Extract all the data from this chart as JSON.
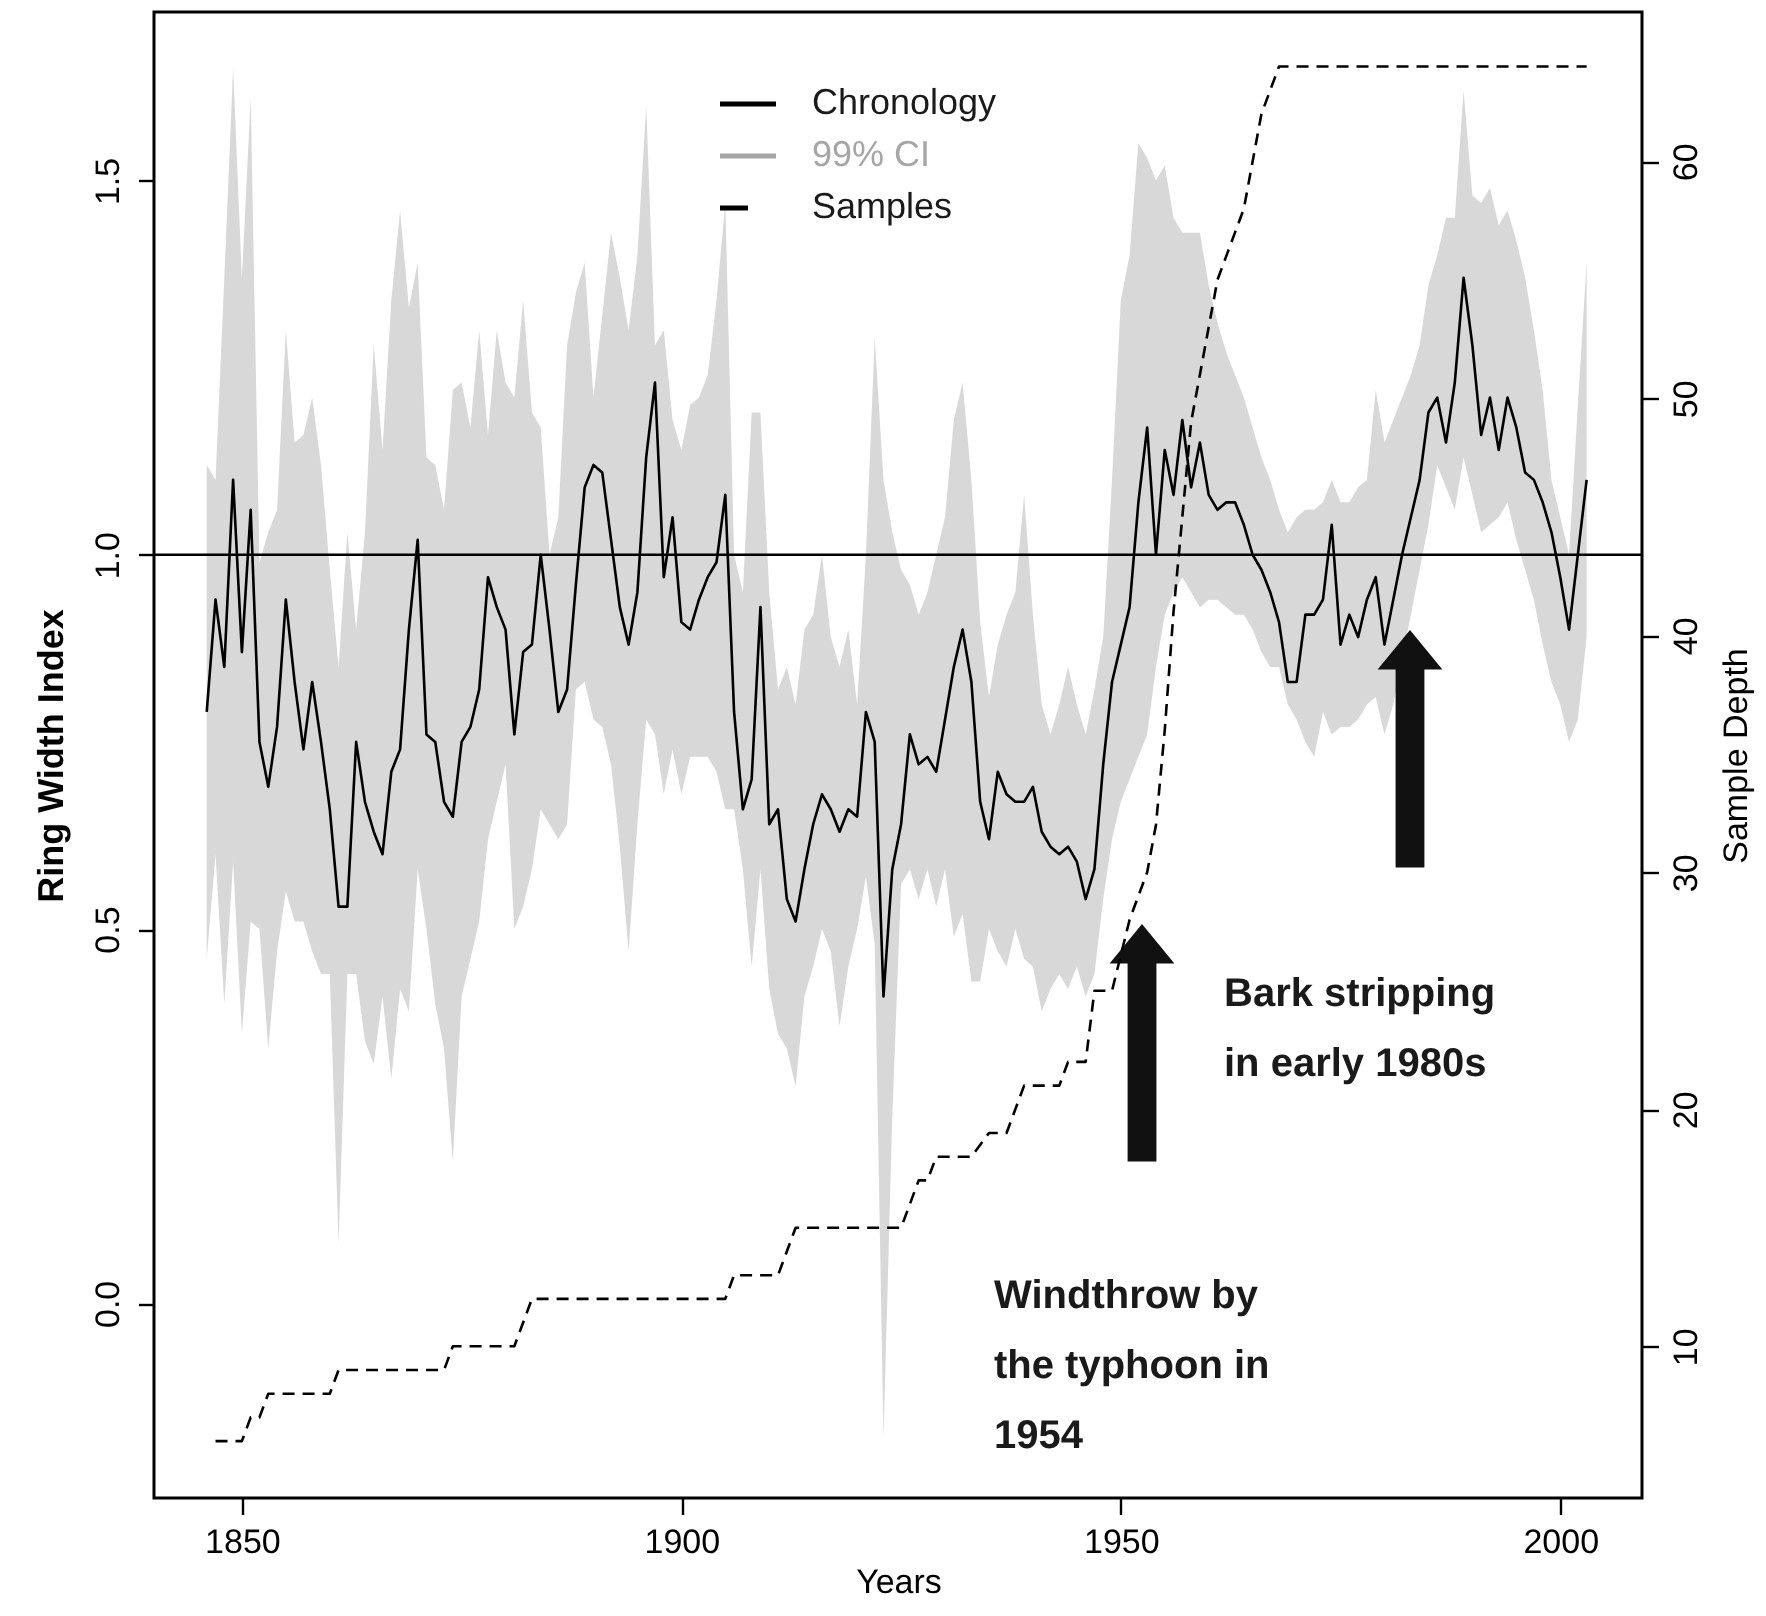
{
  "chart_data": {
    "type": "line",
    "xlabel": "Years",
    "ylabel": "Ring Width Index",
    "y2label": "Sample Depth",
    "xlim": [
      1840,
      2009.3
    ],
    "xticks": [
      1850,
      1900,
      1950,
      2000
    ],
    "ylim": [
      -0.26,
      1.725
    ],
    "yticks": [
      {
        "value": 0,
        "label": "0.0"
      },
      {
        "value": 0.5,
        "label": "0.5"
      },
      {
        "value": 1,
        "label": "1.0"
      },
      {
        "value": 1.5,
        "label": "1.5"
      }
    ],
    "y2lim": [
      3.6,
      66.3
    ],
    "y2ticks": [
      10,
      20,
      30,
      40,
      50,
      60
    ],
    "grid": false,
    "legend": "top",
    "ref_lines": [
      {
        "axis": "y",
        "value": 1,
        "color": "#000000"
      }
    ],
    "annotations": [
      "Windthrow  by\nthe typhoon in\n1954",
      "Bark stripping\nin early 1980s",
      "99% CI"
    ],
    "series": [
      {
        "name": "Chronology",
        "color": "#000000",
        "line_style": "solid",
        "x": [
          1846,
          1847,
          1848,
          1849,
          1850,
          1851,
          1852,
          1853,
          1854,
          1855,
          1856,
          1857,
          1858,
          1859,
          1860,
          1861,
          1862,
          1863,
          1864,
          1865,
          1866,
          1867,
          1868,
          1869,
          1870,
          1871,
          1872,
          1873,
          1874,
          1875,
          1876,
          1877,
          1878,
          1879,
          1880,
          1881,
          1882,
          1883,
          1884,
          1885,
          1886,
          1887,
          1888,
          1889,
          1890,
          1891,
          1892,
          1893,
          1894,
          1895,
          1896,
          1897,
          1898,
          1899,
          1900,
          1901,
          1902,
          1903,
          1904,
          1905,
          1906,
          1907,
          1908,
          1909,
          1910,
          1911,
          1912,
          1913,
          1914,
          1915,
          1916,
          1917,
          1918,
          1919,
          1920,
          1921,
          1922,
          1923,
          1924,
          1925,
          1926,
          1927,
          1928,
          1929,
          1930,
          1931,
          1932,
          1933,
          1934,
          1935,
          1936,
          1937,
          1938,
          1939,
          1940,
          1941,
          1942,
          1943,
          1944,
          1945,
          1946,
          1947,
          1948,
          1949,
          1950,
          1951,
          1952,
          1953,
          1954,
          1955,
          1956,
          1957,
          1958,
          1959,
          1960,
          1961,
          1962,
          1963,
          1964,
          1965,
          1966,
          1967,
          1968,
          1969,
          1970,
          1971,
          1972,
          1973,
          1974,
          1975,
          1976,
          1977,
          1978,
          1979,
          1980,
          1981,
          1982,
          1983,
          1984,
          1985,
          1986,
          1987,
          1988,
          1989,
          1990,
          1991,
          1992,
          1993,
          1994,
          1995,
          1996,
          1997,
          1998,
          1999,
          2000,
          2001,
          2002,
          2003
        ],
        "upper": [
          1.12,
          1.1,
          1.37,
          1.65,
          1.37,
          1.61,
          0.99,
          1.03,
          1.06,
          1.3,
          1.15,
          1.16,
          1.21,
          1.12,
          0.98,
          0.85,
          1.03,
          0.9,
          1.03,
          1.28,
          1.14,
          1.34,
          1.46,
          1.33,
          1.39,
          1.13,
          1.12,
          1.06,
          1.22,
          1.23,
          1.17,
          1.3,
          1.16,
          1.3,
          1.23,
          1.21,
          1.34,
          1.19,
          1.17,
          1.0,
          1.05,
          1.28,
          1.35,
          1.39,
          1.21,
          1.32,
          1.43,
          1.37,
          1.3,
          1.4,
          1.6,
          1.28,
          1.3,
          1.18,
          1.14,
          1.2,
          1.21,
          1.24,
          1.34,
          1.47,
          1.0,
          0.95,
          1.19,
          1.19,
          0.95,
          0.82,
          0.85,
          0.8,
          0.9,
          0.92,
          1.0,
          0.89,
          0.85,
          0.9,
          0.8,
          1.0,
          1.29,
          1.1,
          1.03,
          0.98,
          0.96,
          0.92,
          0.95,
          1.0,
          1.05,
          1.18,
          1.23,
          1.1,
          0.91,
          0.81,
          0.88,
          0.92,
          0.95,
          1.08,
          0.92,
          0.8,
          0.76,
          0.8,
          0.85,
          0.8,
          0.76,
          0.82,
          0.89,
          1.1,
          1.34,
          1.4,
          1.55,
          1.53,
          1.5,
          1.52,
          1.45,
          1.43,
          1.43,
          1.43,
          1.36,
          1.31,
          1.27,
          1.24,
          1.21,
          1.17,
          1.13,
          1.1,
          1.06,
          1.03,
          1.05,
          1.06,
          1.06,
          1.07,
          1.1,
          1.07,
          1.07,
          1.09,
          1.1,
          1.22,
          1.15,
          1.18,
          null,
          1.24,
          1.28,
          1.36,
          1.4,
          1.45,
          1.45,
          1.62,
          1.48,
          1.47,
          1.49,
          1.44,
          1.46,
          1.42,
          1.37,
          1.3,
          1.22,
          1.1,
          1.05,
          1.0,
          1.2,
          1.39
        ],
        "values": [
          0.79,
          0.94,
          0.85,
          1.1,
          0.87,
          1.06,
          0.75,
          0.69,
          0.77,
          0.94,
          0.83,
          0.74,
          0.83,
          0.75,
          0.66,
          0.53,
          0.53,
          0.75,
          0.67,
          0.63,
          0.6,
          0.71,
          0.74,
          0.9,
          1.02,
          0.76,
          0.75,
          0.67,
          0.65,
          0.75,
          0.77,
          0.82,
          0.97,
          0.93,
          0.9,
          0.76,
          0.87,
          0.88,
          1.0,
          0.9,
          0.79,
          0.82,
          0.96,
          1.09,
          1.12,
          1.11,
          1.02,
          0.93,
          0.88,
          0.95,
          1.13,
          1.23,
          0.97,
          1.05,
          0.91,
          0.9,
          0.94,
          0.97,
          0.99,
          1.08,
          0.79,
          0.66,
          0.7,
          0.93,
          0.64,
          0.66,
          0.54,
          0.51,
          0.58,
          0.64,
          0.68,
          0.66,
          0.63,
          0.66,
          0.65,
          0.79,
          0.75,
          0.41,
          0.58,
          0.64,
          0.76,
          0.72,
          0.73,
          0.71,
          0.78,
          0.85,
          0.9,
          0.83,
          0.67,
          0.62,
          0.71,
          0.68,
          0.67,
          0.67,
          0.69,
          0.63,
          0.61,
          0.6,
          0.61,
          0.59,
          0.54,
          0.58,
          0.72,
          0.83,
          0.88,
          0.93,
          1.07,
          1.17,
          1.0,
          1.14,
          1.08,
          1.18,
          1.09,
          1.15,
          1.08,
          1.06,
          1.07,
          1.07,
          1.04,
          1.0,
          0.98,
          0.95,
          0.91,
          0.83,
          0.83,
          0.92,
          0.92,
          0.94,
          1.04,
          0.88,
          0.92,
          0.89,
          0.94,
          0.97,
          0.88,
          0.94,
          1.0,
          1.05,
          1.1,
          1.19,
          1.21,
          1.15,
          1.23,
          1.37,
          1.28,
          1.16,
          1.21,
          1.14,
          1.21,
          1.17,
          1.11,
          1.1,
          1.07,
          1.03,
          0.97,
          0.9,
          1.0,
          1.1
        ],
        "lower": [
          0.46,
          0.6,
          0.4,
          0.59,
          0.36,
          0.51,
          0.5,
          0.34,
          0.47,
          0.55,
          0.51,
          0.51,
          0.47,
          0.44,
          0.44,
          0.08,
          0.44,
          0.44,
          0.35,
          0.32,
          0.41,
          0.3,
          0.42,
          0.39,
          0.58,
          0.5,
          0.4,
          0.34,
          0.19,
          0.41,
          0.46,
          0.51,
          0.62,
          0.67,
          0.72,
          0.5,
          0.53,
          0.58,
          0.66,
          0.64,
          0.62,
          0.64,
          0.82,
          0.83,
          0.78,
          0.77,
          0.72,
          0.61,
          0.47,
          0.64,
          0.78,
          0.76,
          0.68,
          0.74,
          0.68,
          0.73,
          0.73,
          0.73,
          0.71,
          0.66,
          0.66,
          0.58,
          0.45,
          0.58,
          0.42,
          0.36,
          0.34,
          0.29,
          0.41,
          0.45,
          0.5,
          0.47,
          0.37,
          0.45,
          0.5,
          0.57,
          0.48,
          -0.18,
          0.25,
          0.56,
          0.58,
          0.54,
          0.58,
          0.53,
          0.58,
          0.49,
          0.52,
          0.43,
          0.43,
          0.5,
          0.47,
          0.45,
          0.5,
          0.46,
          0.45,
          0.39,
          0.42,
          0.44,
          0.42,
          0.45,
          0.41,
          0.44,
          0.54,
          0.62,
          0.67,
          0.7,
          0.73,
          0.76,
          0.85,
          0.92,
          0.95,
          0.97,
          0.95,
          0.93,
          0.94,
          0.94,
          0.93,
          0.92,
          0.92,
          0.9,
          0.87,
          0.85,
          0.85,
          0.8,
          0.78,
          0.75,
          0.73,
          0.79,
          0.76,
          0.77,
          0.77,
          0.78,
          0.8,
          0.81,
          0.76,
          0.8,
          null,
          0.92,
          0.98,
          1.04,
          1.12,
          1.09,
          1.06,
          1.13,
          1.08,
          1.03,
          1.04,
          1.05,
          1.07,
          1.02,
          0.98,
          0.94,
          0.88,
          0.83,
          0.8,
          0.75,
          0.78,
          0.89
        ]
      },
      {
        "name": "Samples",
        "type": "line",
        "axis": "y2",
        "color": "#000000",
        "line_style": "dashed",
        "x": [
          1847,
          1850,
          1851,
          1852,
          1853,
          1860,
          1861,
          1873,
          1874,
          1881,
          1883,
          1905,
          1906,
          1911,
          1913,
          1925,
          1927,
          1928,
          1929,
          1933,
          1935,
          1937,
          1939,
          1943,
          1944,
          1946,
          1947,
          1949,
          1951,
          1952,
          1953,
          1954,
          1955,
          1956,
          1957,
          1958,
          1959,
          1960,
          1961,
          1962,
          1963,
          1964,
          1965,
          1966,
          1967,
          1968,
          2003
        ],
        "values": [
          6,
          6,
          7,
          7,
          8,
          8,
          9,
          9,
          10,
          10,
          12,
          12,
          13,
          13,
          15,
          15,
          17,
          17,
          18,
          18,
          19,
          19,
          21,
          21,
          22,
          22,
          25,
          25,
          28,
          29,
          30,
          32,
          36,
          41,
          45,
          49,
          51,
          53,
          55,
          56,
          57,
          58,
          60,
          62,
          63,
          64,
          64
        ]
      }
    ]
  }
}
